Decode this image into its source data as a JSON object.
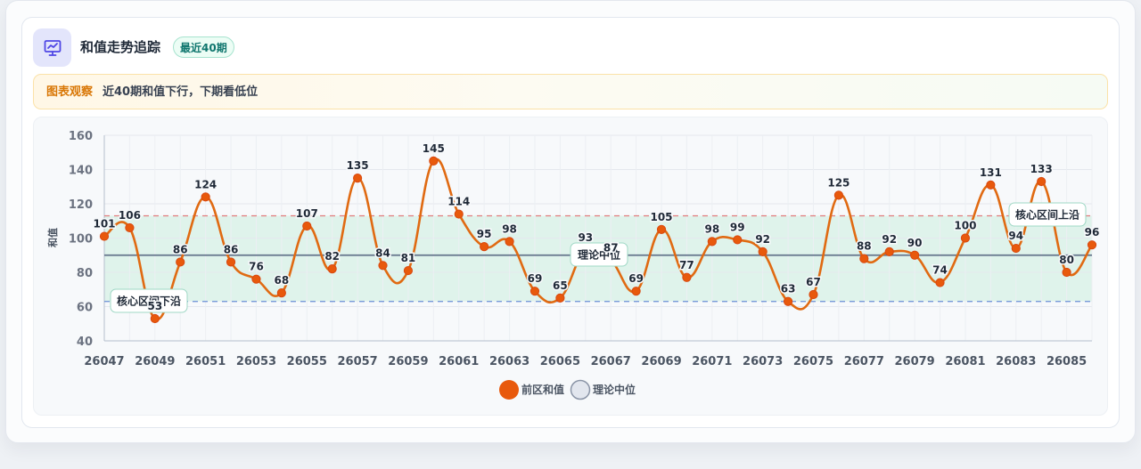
{
  "header": {
    "title": "和值走势追踪",
    "badge": "最近40期",
    "icon": "chart-presentation-icon"
  },
  "observation": {
    "label": "图表观察",
    "text": "近40期和值下行，下期看低位"
  },
  "colors": {
    "line": "#e06a12",
    "point": "#e8590c",
    "median_line": "#64748b",
    "upper_line": "#e07b7b",
    "lower_line": "#6b8fd6",
    "band_fill": "#d7f0e6"
  },
  "chart_data": {
    "type": "line",
    "x": [
      "26047",
      "26048",
      "26049",
      "26050",
      "26051",
      "26052",
      "26053",
      "26054",
      "26055",
      "26056",
      "26057",
      "26058",
      "26059",
      "26060",
      "26061",
      "26062",
      "26063",
      "26064",
      "26065",
      "26066",
      "26067",
      "26068",
      "26069",
      "26070",
      "26071",
      "26072",
      "26073",
      "26074",
      "26075",
      "26076",
      "26077",
      "26078",
      "26079",
      "26080",
      "26081",
      "26082",
      "26083",
      "26084",
      "26085",
      "26086"
    ],
    "x_tick_labels": [
      "26047",
      "26049",
      "26051",
      "26053",
      "26055",
      "26057",
      "26059",
      "26061",
      "26063",
      "26065",
      "26067",
      "26069",
      "26071",
      "26073",
      "26075",
      "26077",
      "26079",
      "26081",
      "26083",
      "26085"
    ],
    "series": [
      {
        "name": "前区和值",
        "values": [
          101,
          106,
          53,
          86,
          124,
          86,
          76,
          68,
          107,
          82,
          135,
          84,
          81,
          145,
          114,
          95,
          98,
          69,
          65,
          93,
          87,
          69,
          105,
          77,
          98,
          99,
          92,
          63,
          67,
          125,
          88,
          92,
          90,
          74,
          100,
          131,
          94,
          133,
          80,
          96
        ]
      }
    ],
    "reference_lines": [
      {
        "name": "理论中位",
        "value": 90,
        "style": "solid"
      },
      {
        "name": "核心区间上沿",
        "value": 113,
        "style": "dashed"
      },
      {
        "name": "核心区间下沿",
        "value": 63,
        "style": "dashed"
      }
    ],
    "ylabel": "和值",
    "xlabel": "",
    "ylim": [
      40,
      160
    ],
    "yticks": [
      40,
      60,
      80,
      100,
      120,
      140,
      160
    ],
    "grid": true,
    "legend": {
      "position": "bottom",
      "items": [
        "前区和值",
        "理论中位"
      ]
    }
  }
}
